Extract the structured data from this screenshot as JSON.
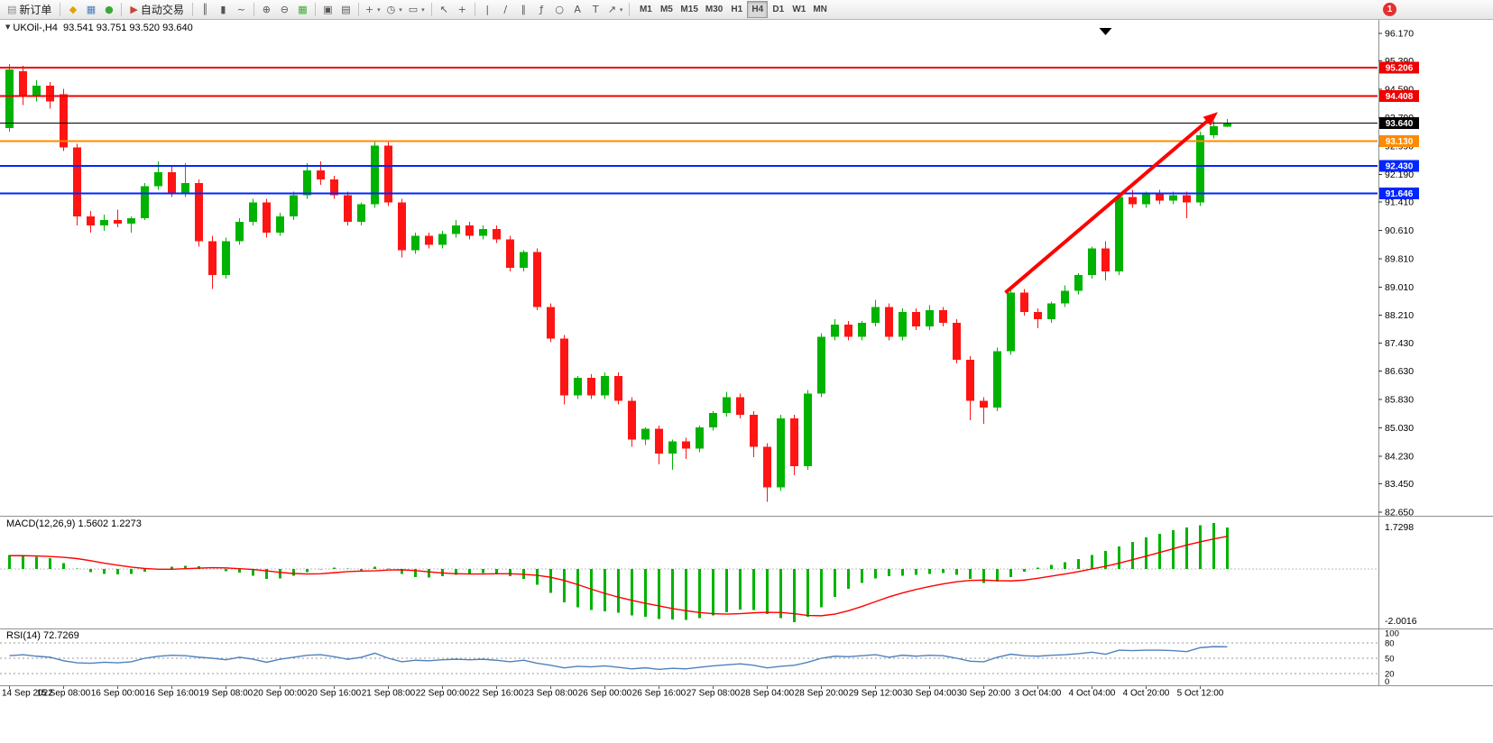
{
  "toolbar": {
    "new_order": {
      "label": "新订单",
      "glyph": "▤",
      "icon": "new-order-icon"
    },
    "left_icons": [
      {
        "name": "metaquotes-icon",
        "glyph": "◆",
        "color": "#e0a400"
      },
      {
        "name": "charts-window-icon",
        "glyph": "▦",
        "color": "#4a7ebb"
      },
      {
        "name": "community-icon",
        "glyph": "●",
        "color": "#3aaa35"
      }
    ],
    "autotrading": {
      "label": "自动交易",
      "glyph": "▶",
      "color": "#c94433",
      "icon": "autotrading-icon"
    },
    "tool_groups": [
      [
        {
          "name": "bar-chart-icon",
          "glyph": "║"
        },
        {
          "name": "candlestick-icon",
          "glyph": "▮"
        },
        {
          "name": "line-chart-icon",
          "glyph": "~"
        }
      ],
      [
        {
          "name": "zoom-in-icon",
          "glyph": "⊕"
        },
        {
          "name": "zoom-out-icon",
          "glyph": "⊖"
        },
        {
          "name": "tile-windows-icon",
          "glyph": "▦",
          "color": "#3aaa35"
        }
      ],
      [
        {
          "name": "new-chart-icon",
          "glyph": "▣"
        },
        {
          "name": "profiles-icon",
          "glyph": "▤"
        }
      ],
      [
        {
          "name": "indicators-icon",
          "glyph": "+",
          "color": "#1a9a1a",
          "dropdown": true
        },
        {
          "name": "periods-icon",
          "glyph": "◷",
          "dropdown": true
        },
        {
          "name": "templates-icon",
          "glyph": "▭",
          "dropdown": true
        }
      ],
      [
        {
          "name": "cursor-icon",
          "glyph": "↖"
        },
        {
          "name": "crosshair-icon",
          "glyph": "+"
        }
      ],
      [
        {
          "name": "vertical-line-icon",
          "glyph": "|"
        },
        {
          "name": "trendline-icon",
          "glyph": "∕"
        },
        {
          "name": "channel-icon",
          "glyph": "∥"
        },
        {
          "name": "fibonacci-icon",
          "glyph": "ƒ"
        },
        {
          "name": "shapes-icon",
          "glyph": "○"
        },
        {
          "name": "text-icon",
          "glyph": "A"
        },
        {
          "name": "label-icon",
          "glyph": "T"
        },
        {
          "name": "arrows-icon",
          "glyph": "↗",
          "dropdown": true
        }
      ]
    ],
    "timeframes": [
      "M1",
      "M5",
      "M15",
      "M30",
      "H1",
      "H4",
      "D1",
      "W1",
      "MN"
    ],
    "active_timeframe": "H4",
    "notification_badge": "1"
  },
  "chart": {
    "collapse_icon_glyph": "▼",
    "symbol_info": "UKOil-,H4  93.541 93.751 93.520 93.640",
    "macd_label": "MACD(12,26,9) 1.5602 1.2273",
    "rsi_label": "RSI(14) 72.7269"
  },
  "chart_data": {
    "type": "candlestick",
    "symbol": "UKOil-",
    "timeframe": "H4",
    "ohlc": {
      "open": "93.541",
      "high": "93.751",
      "low": "93.520",
      "close": "93.640"
    },
    "up_color": "#00b300",
    "down_color": "#ff1414",
    "ylim": [
      82.6,
      96.35
    ],
    "price_axis_ticks": [
      "96.170",
      "95.390",
      "94.590",
      "93.790",
      "92.990",
      "92.190",
      "91.410",
      "90.610",
      "89.810",
      "89.010",
      "88.210",
      "87.430",
      "86.630",
      "85.830",
      "85.030",
      "84.230",
      "83.450",
      "82.650"
    ],
    "hlines": [
      {
        "label": "95.206",
        "price": 95.206,
        "color": "#f00000",
        "width": 2
      },
      {
        "label": "94.408",
        "price": 94.408,
        "color": "#f00000",
        "width": 2
      },
      {
        "label": "93.640",
        "price": 93.64,
        "color": "#000000",
        "width": 1.2,
        "current": true
      },
      {
        "label": "93.130",
        "price": 93.13,
        "color": "#ff8a00",
        "width": 2
      },
      {
        "label": "92.430",
        "price": 92.43,
        "color": "#0026ff",
        "width": 2
      },
      {
        "label": "91.646",
        "price": 91.646,
        "color": "#0026ff",
        "width": 2
      }
    ],
    "x_labels": [
      "14 Sep 2022",
      "15 Sep 08:00",
      "16 Sep 00:00",
      "16 Sep 16:00",
      "19 Sep 08:00",
      "20 Sep 00:00",
      "20 Sep 16:00",
      "21 Sep 08:00",
      "22 Sep 00:00",
      "22 Sep 16:00",
      "23 Sep 08:00",
      "26 Sep 00:00",
      "26 Sep 16:00",
      "27 Sep 08:00",
      "28 Sep 04:00",
      "28 Sep 20:00",
      "29 Sep 12:00",
      "30 Sep 04:00",
      "30 Sep 20:00",
      "3 Oct 04:00",
      "4 Oct 04:00",
      "4 Oct 20:00",
      "5 Oct 12:00"
    ],
    "label_step": 4,
    "shift_marker_index": 81,
    "trend_arrow": {
      "from_index": 73.6,
      "from_price": 88.85,
      "to_index": 89.3,
      "to_price": 93.95,
      "color": "#ff0000",
      "width": 4
    },
    "candles": [
      [
        93.5,
        95.3,
        93.4,
        95.15
      ],
      [
        95.1,
        95.25,
        94.15,
        94.4
      ],
      [
        94.4,
        94.85,
        94.25,
        94.7
      ],
      [
        94.7,
        94.8,
        94.05,
        94.25
      ],
      [
        94.45,
        94.6,
        92.85,
        92.95
      ],
      [
        92.95,
        93.05,
        90.75,
        91.0
      ],
      [
        91.0,
        91.15,
        90.55,
        90.75
      ],
      [
        90.75,
        91.05,
        90.6,
        90.9
      ],
      [
        90.9,
        91.2,
        90.7,
        90.8
      ],
      [
        90.8,
        91.0,
        90.55,
        90.95
      ],
      [
        90.95,
        91.95,
        90.9,
        91.85
      ],
      [
        91.85,
        92.55,
        91.75,
        92.25
      ],
      [
        92.25,
        92.4,
        91.55,
        91.65
      ],
      [
        91.65,
        92.5,
        91.55,
        91.95
      ],
      [
        91.95,
        92.05,
        90.15,
        90.3
      ],
      [
        90.3,
        90.45,
        88.95,
        89.35
      ],
      [
        89.35,
        90.4,
        89.25,
        90.3
      ],
      [
        90.3,
        90.95,
        90.2,
        90.85
      ],
      [
        90.85,
        91.5,
        90.75,
        91.4
      ],
      [
        91.4,
        91.5,
        90.4,
        90.55
      ],
      [
        90.55,
        91.1,
        90.45,
        91.0
      ],
      [
        91.0,
        91.7,
        90.9,
        91.6
      ],
      [
        91.6,
        92.5,
        91.5,
        92.3
      ],
      [
        92.3,
        92.55,
        91.9,
        92.05
      ],
      [
        92.05,
        92.15,
        91.5,
        91.6
      ],
      [
        91.6,
        91.7,
        90.75,
        90.85
      ],
      [
        90.85,
        91.4,
        90.75,
        91.35
      ],
      [
        91.35,
        93.15,
        91.25,
        93.0
      ],
      [
        93.0,
        93.1,
        91.3,
        91.4
      ],
      [
        91.4,
        91.5,
        89.85,
        90.05
      ],
      [
        90.05,
        90.55,
        89.95,
        90.45
      ],
      [
        90.45,
        90.55,
        90.1,
        90.2
      ],
      [
        90.2,
        90.6,
        90.1,
        90.5
      ],
      [
        90.5,
        90.9,
        90.4,
        90.75
      ],
      [
        90.75,
        90.85,
        90.35,
        90.45
      ],
      [
        90.45,
        90.75,
        90.35,
        90.65
      ],
      [
        90.65,
        90.75,
        90.25,
        90.35
      ],
      [
        90.35,
        90.45,
        89.45,
        89.55
      ],
      [
        89.55,
        90.05,
        89.45,
        90.0
      ],
      [
        90.0,
        90.1,
        88.35,
        88.45
      ],
      [
        88.45,
        88.55,
        87.45,
        87.55
      ],
      [
        87.55,
        87.65,
        85.7,
        85.95
      ],
      [
        85.95,
        86.5,
        85.85,
        86.45
      ],
      [
        86.45,
        86.55,
        85.85,
        85.95
      ],
      [
        85.95,
        86.6,
        85.85,
        86.5
      ],
      [
        86.5,
        86.6,
        85.7,
        85.8
      ],
      [
        85.8,
        85.9,
        84.5,
        84.7
      ],
      [
        84.7,
        85.05,
        84.55,
        85.0
      ],
      [
        85.0,
        85.1,
        84.0,
        84.3
      ],
      [
        84.3,
        84.7,
        83.85,
        84.65
      ],
      [
        84.65,
        84.75,
        84.15,
        84.45
      ],
      [
        84.45,
        85.1,
        84.35,
        85.05
      ],
      [
        85.05,
        85.5,
        84.95,
        85.45
      ],
      [
        85.45,
        86.05,
        85.35,
        85.9
      ],
      [
        85.9,
        86.0,
        85.3,
        85.4
      ],
      [
        85.4,
        85.5,
        84.2,
        84.5
      ],
      [
        84.5,
        84.6,
        82.95,
        83.35
      ],
      [
        83.35,
        85.4,
        83.25,
        85.3
      ],
      [
        85.3,
        85.4,
        83.7,
        83.95
      ],
      [
        83.95,
        86.1,
        83.85,
        86.0
      ],
      [
        86.0,
        87.7,
        85.9,
        87.6
      ],
      [
        87.6,
        88.1,
        87.5,
        87.95
      ],
      [
        87.95,
        88.05,
        87.5,
        87.6
      ],
      [
        87.6,
        88.05,
        87.5,
        88.0
      ],
      [
        88.0,
        88.65,
        87.9,
        88.45
      ],
      [
        88.45,
        88.55,
        87.5,
        87.6
      ],
      [
        87.6,
        88.4,
        87.5,
        88.3
      ],
      [
        88.3,
        88.4,
        87.8,
        87.9
      ],
      [
        87.9,
        88.5,
        87.8,
        88.35
      ],
      [
        88.35,
        88.45,
        87.9,
        88.0
      ],
      [
        88.0,
        88.1,
        86.85,
        86.95
      ],
      [
        86.95,
        87.05,
        85.25,
        85.8
      ],
      [
        85.8,
        85.9,
        85.15,
        85.6
      ],
      [
        85.6,
        87.3,
        85.5,
        87.2
      ],
      [
        87.2,
        88.95,
        87.1,
        88.85
      ],
      [
        88.85,
        88.95,
        88.2,
        88.3
      ],
      [
        88.3,
        88.4,
        87.85,
        88.1
      ],
      [
        88.1,
        88.6,
        88.0,
        88.55
      ],
      [
        88.55,
        89.05,
        88.45,
        88.9
      ],
      [
        88.9,
        89.4,
        88.8,
        89.35
      ],
      [
        89.35,
        90.15,
        89.25,
        90.1
      ],
      [
        90.1,
        90.3,
        89.2,
        89.45
      ],
      [
        89.45,
        91.65,
        89.35,
        91.55
      ],
      [
        91.55,
        91.75,
        91.25,
        91.35
      ],
      [
        91.35,
        91.7,
        91.25,
        91.65
      ],
      [
        91.65,
        91.75,
        91.35,
        91.45
      ],
      [
        91.45,
        91.7,
        91.35,
        91.6
      ],
      [
        91.6,
        91.7,
        90.95,
        91.4
      ],
      [
        91.4,
        93.4,
        91.3,
        93.3
      ],
      [
        93.3,
        93.7,
        93.2,
        93.55
      ],
      [
        93.541,
        93.751,
        93.52,
        93.64
      ]
    ],
    "macd": {
      "label": "MACD(12,26,9) 1.5602 1.2273",
      "params": [
        12,
        26,
        9
      ],
      "main_value": 1.5602,
      "signal_value": 1.2273,
      "scale_max": 1.7298,
      "scale_min": -2.0016,
      "scale_max_label": "1.7298",
      "scale_min_label": "-2.0016",
      "histogram_color": "#00b300",
      "signal_color": "#ff0000",
      "histogram": [
        0.52,
        0.5,
        0.46,
        0.4,
        0.22,
        0.02,
        -0.12,
        -0.18,
        -0.2,
        -0.18,
        -0.1,
        0.0,
        0.08,
        0.12,
        0.1,
        0.0,
        -0.08,
        -0.14,
        -0.25,
        -0.38,
        -0.35,
        -0.25,
        -0.12,
        -0.02,
        0.05,
        0.02,
        -0.05,
        0.08,
        0.02,
        -0.18,
        -0.3,
        -0.32,
        -0.28,
        -0.22,
        -0.18,
        -0.15,
        -0.18,
        -0.28,
        -0.38,
        -0.6,
        -0.9,
        -1.25,
        -1.45,
        -1.55,
        -1.6,
        -1.65,
        -1.75,
        -1.8,
        -1.88,
        -1.9,
        -1.92,
        -1.85,
        -1.75,
        -1.62,
        -1.52,
        -1.55,
        -1.7,
        -1.85,
        -2.0016,
        -1.8,
        -1.45,
        -1.05,
        -0.75,
        -0.52,
        -0.35,
        -0.28,
        -0.25,
        -0.22,
        -0.18,
        -0.15,
        -0.22,
        -0.38,
        -0.52,
        -0.48,
        -0.3,
        -0.1,
        0.05,
        0.15,
        0.25,
        0.38,
        0.52,
        0.68,
        0.85,
        1.02,
        1.18,
        1.32,
        1.45,
        1.56,
        1.65,
        1.7298,
        1.5602
      ],
      "signal": [
        0.5,
        0.5,
        0.49,
        0.47,
        0.44,
        0.39,
        0.31,
        0.22,
        0.14,
        0.07,
        0.02,
        -0.01,
        -0.01,
        0.01,
        0.03,
        0.05,
        0.04,
        0.01,
        -0.02,
        -0.07,
        -0.13,
        -0.17,
        -0.19,
        -0.18,
        -0.14,
        -0.1,
        -0.08,
        -0.07,
        -0.04,
        -0.03,
        -0.06,
        -0.11,
        -0.15,
        -0.18,
        -0.19,
        -0.19,
        -0.18,
        -0.18,
        -0.2,
        -0.24,
        -0.31,
        -0.43,
        -0.59,
        -0.76,
        -0.92,
        -1.06,
        -1.18,
        -1.29,
        -1.39,
        -1.49,
        -1.57,
        -1.64,
        -1.68,
        -1.7,
        -1.68,
        -1.65,
        -1.63,
        -1.64,
        -1.68,
        -1.75,
        -1.76,
        -1.7,
        -1.57,
        -1.41,
        -1.23,
        -1.05,
        -0.9,
        -0.77,
        -0.66,
        -0.56,
        -0.48,
        -0.43,
        -0.42,
        -0.44,
        -0.45,
        -0.42,
        -0.35,
        -0.27,
        -0.19,
        -0.1,
        0.0,
        0.1,
        0.22,
        0.35,
        0.48,
        0.62,
        0.76,
        0.9,
        1.02,
        1.13,
        1.2273
      ]
    },
    "rsi": {
      "label": "RSI(14) 72.7269",
      "period": 14,
      "value": 72.7269,
      "line_color": "#4f81bd",
      "levels": [
        80,
        50,
        20
      ],
      "axis_ticks": [
        "100",
        "80",
        "50",
        "20",
        "0"
      ],
      "values": [
        55,
        57,
        54,
        52,
        45,
        41,
        40,
        42,
        41,
        43,
        50,
        54,
        56,
        55,
        52,
        50,
        47,
        52,
        48,
        42,
        48,
        52,
        56,
        57,
        53,
        48,
        52,
        60,
        50,
        43,
        46,
        45,
        47,
        48,
        47,
        48,
        46,
        43,
        46,
        40,
        36,
        31,
        34,
        33,
        35,
        32,
        29,
        31,
        28,
        30,
        29,
        32,
        35,
        37,
        39,
        36,
        31,
        34,
        36,
        42,
        50,
        54,
        53,
        55,
        57,
        52,
        56,
        54,
        56,
        55,
        50,
        44,
        43,
        52,
        58,
        55,
        54,
        56,
        57,
        59,
        62,
        58,
        66,
        65,
        66,
        66,
        65,
        63,
        71,
        73,
        72.73
      ]
    }
  }
}
